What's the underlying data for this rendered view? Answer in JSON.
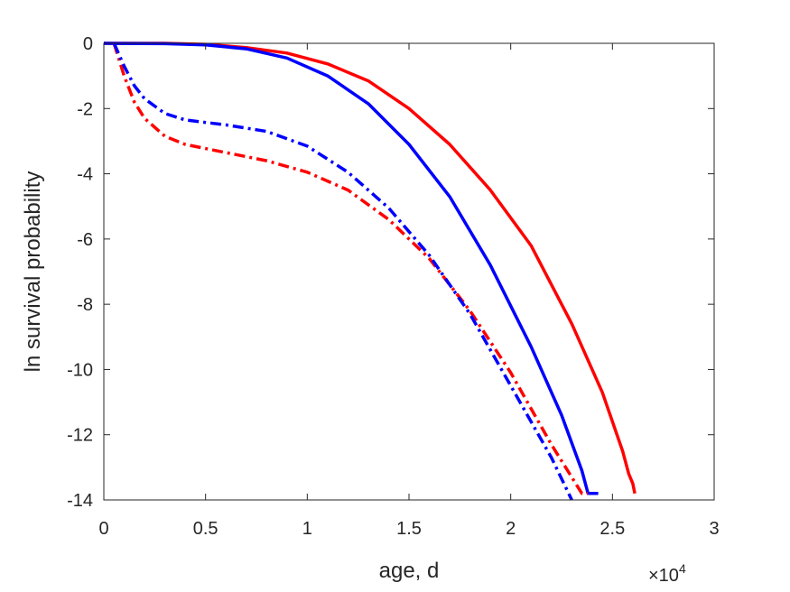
{
  "chart_data": {
    "type": "line",
    "xlabel": "age, d",
    "ylabel": "ln survival probability",
    "x_exponent_label": "×10",
    "x_exponent_power": "4",
    "xlim": [
      0,
      3
    ],
    "ylim": [
      -14,
      0
    ],
    "x_ticks": [
      "0",
      "0.5",
      "1",
      "1.5",
      "2",
      "2.5",
      "3"
    ],
    "y_ticks": [
      "0",
      "-2",
      "-4",
      "-6",
      "-8",
      "-10",
      "-12",
      "-14"
    ],
    "x_tick_values": [
      0,
      0.5,
      1,
      1.5,
      2,
      2.5,
      3
    ],
    "y_tick_values": [
      0,
      -2,
      -4,
      -6,
      -8,
      -10,
      -12,
      -14
    ],
    "grid": false,
    "series": [
      {
        "color": "#ff0000",
        "style": "solid",
        "x": [
          0,
          0.3,
          0.5,
          0.7,
          0.9,
          1.1,
          1.3,
          1.5,
          1.7,
          1.9,
          2.1,
          2.3,
          2.45,
          2.55,
          2.58,
          2.6,
          2.61
        ],
        "y": [
          0,
          0,
          -0.03,
          -0.13,
          -0.3,
          -0.63,
          -1.15,
          -2,
          -3.1,
          -4.5,
          -6.2,
          -8.6,
          -10.7,
          -12.5,
          -13.2,
          -13.5,
          -13.8
        ]
      },
      {
        "color": "#0000ff",
        "style": "solid",
        "x": [
          0,
          0.3,
          0.5,
          0.7,
          0.9,
          1.1,
          1.3,
          1.5,
          1.7,
          1.9,
          2.1,
          2.25,
          2.35,
          2.38,
          2.4,
          2.43
        ],
        "y": [
          0,
          -0.01,
          -0.05,
          -0.17,
          -0.45,
          -1,
          -1.85,
          -3.1,
          -4.7,
          -6.8,
          -9.3,
          -11.4,
          -13.1,
          -13.8,
          -13.8,
          -13.8
        ]
      },
      {
        "color": "#ff0000",
        "style": "dashdot",
        "x": [
          0.05,
          0.1,
          0.15,
          0.2,
          0.3,
          0.4,
          0.6,
          0.8,
          1.0,
          1.2,
          1.4,
          1.6,
          1.8,
          2.0,
          2.2,
          2.35,
          2.38
        ],
        "y": [
          0,
          -1.0,
          -1.8,
          -2.3,
          -2.85,
          -3.1,
          -3.35,
          -3.6,
          -3.95,
          -4.5,
          -5.4,
          -6.6,
          -8.2,
          -10.1,
          -12.3,
          -13.8,
          -13.8
        ]
      },
      {
        "color": "#0000ff",
        "style": "dashdot",
        "x": [
          0.05,
          0.1,
          0.15,
          0.2,
          0.3,
          0.4,
          0.6,
          0.8,
          1.0,
          1.2,
          1.4,
          1.6,
          1.8,
          2.0,
          2.2,
          2.3
        ],
        "y": [
          0,
          -0.7,
          -1.3,
          -1.7,
          -2.15,
          -2.35,
          -2.5,
          -2.7,
          -3.15,
          -3.95,
          -5.05,
          -6.5,
          -8.3,
          -10.5,
          -12.7,
          -14
        ]
      }
    ]
  }
}
